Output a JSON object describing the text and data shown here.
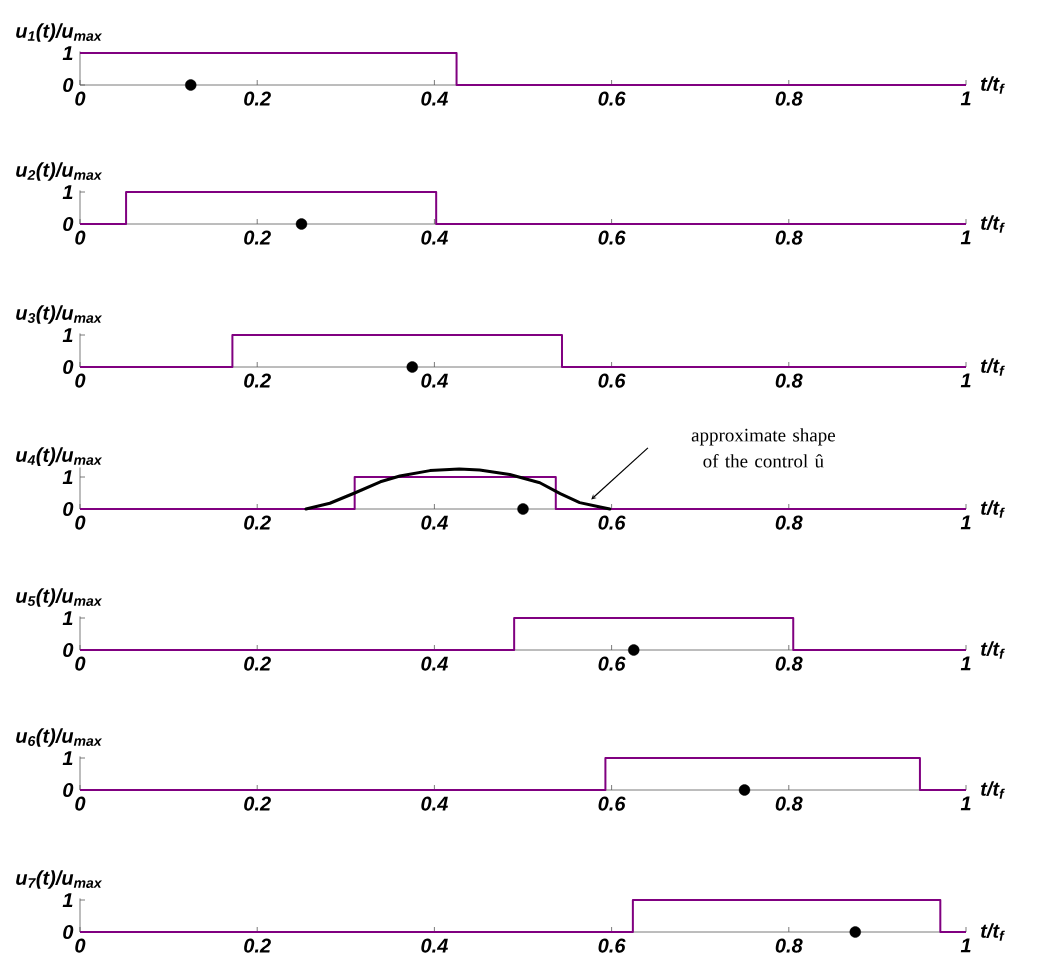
{
  "chart_data": [
    {
      "type": "step",
      "ylabel": "u$_{1}$(t)/u$_{max}$",
      "xlabel": "t/t$_{f}$",
      "xlim": [
        0,
        1
      ],
      "ylim": [
        0,
        1.05
      ],
      "xticks": [
        0,
        0.2,
        0.4,
        0.6,
        0.8,
        1
      ],
      "yticks": [
        0,
        1
      ],
      "grid": false,
      "series": [
        {
          "color": "#800080",
          "x": [
            0,
            0.425,
            1
          ],
          "values": [
            1,
            0,
            0
          ]
        },
        {
          "type": "scatter",
          "color": "#000000",
          "marker": "circle",
          "x": [
            0.125
          ],
          "values": [
            0
          ]
        }
      ]
    },
    {
      "type": "step",
      "ylabel": "u$_{2}$(t)/u$_{max}$",
      "xlabel": "t/t$_{f}$",
      "xlim": [
        0,
        1
      ],
      "ylim": [
        0,
        1.05
      ],
      "xticks": [
        0,
        0.2,
        0.4,
        0.6,
        0.8,
        1
      ],
      "yticks": [
        0,
        1
      ],
      "grid": false,
      "series": [
        {
          "color": "#800080",
          "x": [
            0,
            0.052,
            0.402,
            1
          ],
          "values": [
            0,
            1,
            0,
            0
          ]
        },
        {
          "type": "scatter",
          "color": "#000000",
          "marker": "circle",
          "x": [
            0.25
          ],
          "values": [
            0
          ]
        }
      ]
    },
    {
      "type": "step",
      "ylabel": "u$_{3}$(t)/u$_{max}$",
      "xlabel": "t/t$_{f}$",
      "xlim": [
        0,
        1
      ],
      "ylim": [
        0,
        1.05
      ],
      "xticks": [
        0,
        0.2,
        0.4,
        0.6,
        0.8,
        1
      ],
      "yticks": [
        0,
        1
      ],
      "grid": false,
      "series": [
        {
          "color": "#800080",
          "x": [
            0,
            0.172,
            0.544,
            1
          ],
          "values": [
            0,
            1,
            0,
            0
          ]
        },
        {
          "type": "scatter",
          "color": "#000000",
          "marker": "circle",
          "x": [
            0.375
          ],
          "values": [
            0
          ]
        }
      ]
    },
    {
      "type": "step",
      "ylabel": "u$_{4}$(t)/u$_{max}$",
      "xlabel": "t/t$_{f}$",
      "xlim": [
        0,
        1
      ],
      "ylim": [
        0,
        1.3
      ],
      "xticks": [
        0,
        0.2,
        0.4,
        0.6,
        0.8,
        1
      ],
      "yticks": [
        0,
        1
      ],
      "grid": false,
      "annotations": [
        "approximate shape of the control û"
      ],
      "series": [
        {
          "color": "#800080",
          "x": [
            0,
            0.31,
            0.537,
            1
          ],
          "values": [
            0,
            1,
            0,
            0
          ]
        },
        {
          "type": "line",
          "color": "#000000",
          "x": [
            0.255,
            0.282,
            0.31,
            0.339,
            0.361,
            0.395,
            0.428,
            0.451,
            0.485,
            0.519,
            0.542,
            0.564,
            0.587,
            0.598
          ],
          "values": [
            0,
            0.18,
            0.5,
            0.85,
            1.03,
            1.2,
            1.25,
            1.22,
            1.08,
            0.82,
            0.48,
            0.2,
            0.06,
            0
          ]
        },
        {
          "type": "scatter",
          "color": "#000000",
          "marker": "circle",
          "x": [
            0.5
          ],
          "values": [
            0
          ]
        }
      ]
    },
    {
      "type": "step",
      "ylabel": "u$_{5}$(t)/u$_{max}$",
      "xlabel": "t/t$_{f}$",
      "xlim": [
        0,
        1
      ],
      "ylim": [
        0,
        1.05
      ],
      "xticks": [
        0,
        0.2,
        0.4,
        0.6,
        0.8,
        1
      ],
      "yticks": [
        0,
        1
      ],
      "grid": false,
      "series": [
        {
          "color": "#800080",
          "x": [
            0,
            0.49,
            0.805,
            1
          ],
          "values": [
            0,
            1,
            0,
            0
          ]
        },
        {
          "type": "scatter",
          "color": "#000000",
          "marker": "circle",
          "x": [
            0.625
          ],
          "values": [
            0
          ]
        }
      ]
    },
    {
      "type": "step",
      "ylabel": "u$_{6}$(t)/u$_{max}$",
      "xlabel": "t/t$_{f}$",
      "xlim": [
        0,
        1
      ],
      "ylim": [
        0,
        1.05
      ],
      "xticks": [
        0,
        0.2,
        0.4,
        0.6,
        0.8,
        1
      ],
      "yticks": [
        0,
        1
      ],
      "grid": false,
      "series": [
        {
          "color": "#800080",
          "x": [
            0,
            0.593,
            0.948,
            1
          ],
          "values": [
            0,
            1,
            0,
            0
          ]
        },
        {
          "type": "scatter",
          "color": "#000000",
          "marker": "circle",
          "x": [
            0.75
          ],
          "values": [
            0
          ]
        }
      ]
    },
    {
      "type": "step",
      "ylabel": "u$_{7}$(t)/u$_{max}$",
      "xlabel": "t/t$_{f}$",
      "xlim": [
        0,
        1
      ],
      "ylim": [
        0,
        1.05
      ],
      "xticks": [
        0,
        0.2,
        0.4,
        0.6,
        0.8,
        1
      ],
      "yticks": [
        0,
        1
      ],
      "grid": false,
      "series": [
        {
          "color": "#800080",
          "x": [
            0,
            0.624,
            0.971,
            1
          ],
          "values": [
            0,
            1,
            0,
            0
          ]
        },
        {
          "type": "scatter",
          "color": "#000000",
          "marker": "circle",
          "x": [
            0.875
          ],
          "values": [
            0
          ]
        }
      ]
    }
  ]
}
